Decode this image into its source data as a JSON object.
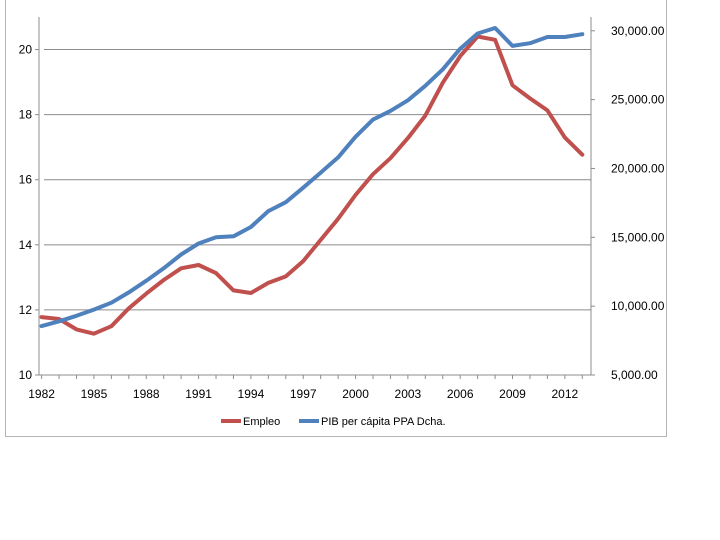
{
  "chart_data": {
    "type": "line",
    "title": "",
    "xlabel": "",
    "ylabel": "",
    "y2label": "",
    "x_tick_labels": [
      "1982",
      "1985",
      "1988",
      "1991",
      "1994",
      "1997",
      "2000",
      "2003",
      "2006",
      "2009",
      "2012"
    ],
    "x": [
      1982,
      1983,
      1984,
      1985,
      1986,
      1987,
      1988,
      1989,
      1990,
      1991,
      1992,
      1993,
      1994,
      1995,
      1996,
      1997,
      1998,
      1999,
      2000,
      2001,
      2002,
      2003,
      2004,
      2005,
      2006,
      2007,
      2008,
      2009,
      2010,
      2011,
      2012,
      2013
    ],
    "xlim": [
      1981.85,
      2013.5
    ],
    "ylim_left": [
      10,
      21
    ],
    "y_left_ticks": [
      10,
      12,
      14,
      16,
      18,
      20
    ],
    "ylim_right": [
      5000,
      31000
    ],
    "y_right_ticks": [
      5000,
      10000,
      15000,
      20000,
      25000,
      30000
    ],
    "y_right_tick_labels": [
      "5,000.00",
      "10,000.00",
      "15,000.00",
      "20,000.00",
      "25,000.00",
      "30,000.00"
    ],
    "grid": "horizontal",
    "legend_position": "bottom",
    "series": [
      {
        "name": "Empleo",
        "axis": "left",
        "color": "#c0504d",
        "values": [
          11.78,
          11.72,
          11.4,
          11.27,
          11.5,
          12.05,
          12.5,
          12.92,
          13.28,
          13.38,
          13.13,
          12.6,
          12.52,
          12.83,
          13.03,
          13.5,
          14.15,
          14.8,
          15.53,
          16.17,
          16.66,
          17.28,
          17.97,
          18.98,
          19.8,
          20.4,
          20.3,
          18.9,
          18.5,
          18.13,
          17.3,
          16.77
        ]
      },
      {
        "name": "PIB per cápita PPA Dcha.",
        "axis": "right",
        "color": "#4f81bd",
        "values": [
          8550,
          8900,
          9300,
          9750,
          10250,
          11000,
          11850,
          12750,
          13750,
          14550,
          15000,
          15070,
          15750,
          16900,
          17550,
          18600,
          19700,
          20800,
          22300,
          23550,
          24180,
          24950,
          26000,
          27200,
          28700,
          29800,
          30200,
          28900,
          29100,
          29550,
          29550,
          29750
        ]
      }
    ]
  }
}
